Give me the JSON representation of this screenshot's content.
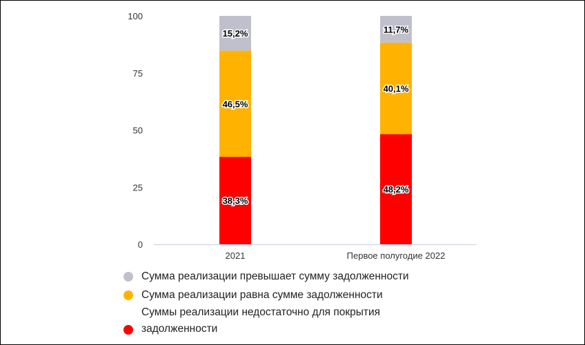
{
  "chart_data": {
    "type": "bar",
    "stacked": true,
    "categories": [
      "2021",
      "Первое полугодие 2022"
    ],
    "series": [
      {
        "name": "Суммы реализации недостаточно для покрытия задолженности",
        "color": "#ff0000",
        "values": [
          38.3,
          48.2
        ],
        "labels": [
          "38,3%",
          "48,2%"
        ]
      },
      {
        "name": "Сумма реализации равна сумме задолженности",
        "color": "#ffb300",
        "values": [
          46.5,
          40.1
        ],
        "labels": [
          "46,5%",
          "40,1%"
        ]
      },
      {
        "name": "Сумма реализации превышает сумму задолженности",
        "color": "#c0c0cc",
        "values": [
          15.2,
          11.7
        ],
        "labels": [
          "15,2%",
          "11,7%"
        ]
      }
    ],
    "yticks": [
      "0",
      "25",
      "50",
      "75",
      "100"
    ],
    "ylim": [
      0,
      100
    ],
    "grid": false,
    "legend_position": "bottom",
    "title": "",
    "xlabel": "",
    "ylabel": ""
  },
  "legend": [
    {
      "label": "Сумма реализации превышает сумму задолженности",
      "color": "#c0c0cc"
    },
    {
      "label": "Сумма реализации равна сумме задолженности",
      "color": "#ffb300"
    },
    {
      "label": "Суммы реализации недостаточно для покрытия задолженности",
      "color": "#ff0000"
    }
  ]
}
